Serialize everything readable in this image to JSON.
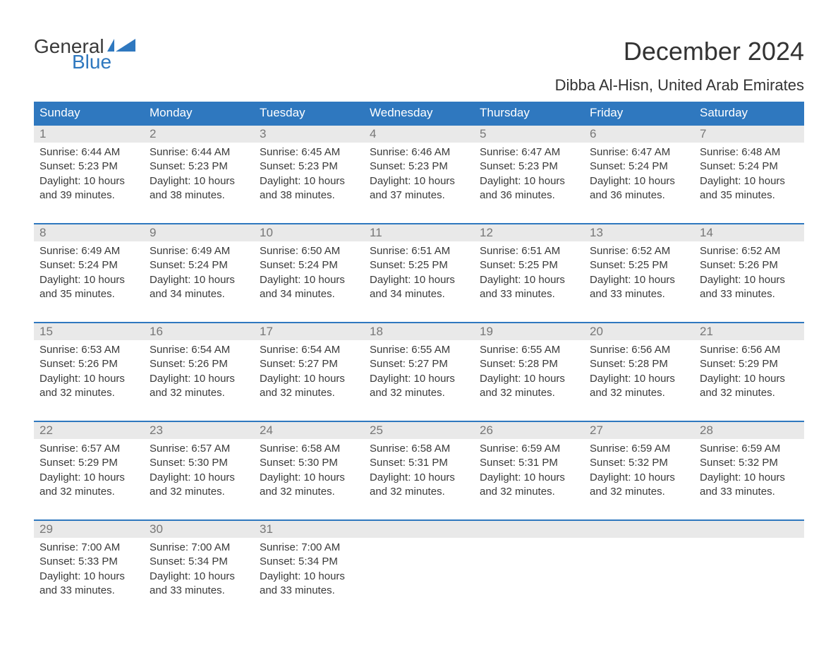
{
  "logo": {
    "text_general": "General",
    "text_blue": "Blue",
    "flag_color": "#2f78bf"
  },
  "title": "December 2024",
  "location": "Dibba Al-Hisn, United Arab Emirates",
  "colors": {
    "header_bg": "#2f78bf",
    "header_text": "#ffffff",
    "daynum_bg": "#e9e9e9",
    "daynum_border": "#2f78bf",
    "body_text": "#3a3a3a",
    "daynum_text": "#777777",
    "page_bg": "#ffffff"
  },
  "typography": {
    "title_fontsize": 36,
    "location_fontsize": 22,
    "header_fontsize": 17,
    "daynum_fontsize": 17,
    "body_fontsize": 15
  },
  "weekdays": [
    "Sunday",
    "Monday",
    "Tuesday",
    "Wednesday",
    "Thursday",
    "Friday",
    "Saturday"
  ],
  "start_offset": 0,
  "days": [
    {
      "n": 1,
      "sunrise": "6:44 AM",
      "sunset": "5:23 PM",
      "daylight": "10 hours and 39 minutes."
    },
    {
      "n": 2,
      "sunrise": "6:44 AM",
      "sunset": "5:23 PM",
      "daylight": "10 hours and 38 minutes."
    },
    {
      "n": 3,
      "sunrise": "6:45 AM",
      "sunset": "5:23 PM",
      "daylight": "10 hours and 38 minutes."
    },
    {
      "n": 4,
      "sunrise": "6:46 AM",
      "sunset": "5:23 PM",
      "daylight": "10 hours and 37 minutes."
    },
    {
      "n": 5,
      "sunrise": "6:47 AM",
      "sunset": "5:23 PM",
      "daylight": "10 hours and 36 minutes."
    },
    {
      "n": 6,
      "sunrise": "6:47 AM",
      "sunset": "5:24 PM",
      "daylight": "10 hours and 36 minutes."
    },
    {
      "n": 7,
      "sunrise": "6:48 AM",
      "sunset": "5:24 PM",
      "daylight": "10 hours and 35 minutes."
    },
    {
      "n": 8,
      "sunrise": "6:49 AM",
      "sunset": "5:24 PM",
      "daylight": "10 hours and 35 minutes."
    },
    {
      "n": 9,
      "sunrise": "6:49 AM",
      "sunset": "5:24 PM",
      "daylight": "10 hours and 34 minutes."
    },
    {
      "n": 10,
      "sunrise": "6:50 AM",
      "sunset": "5:24 PM",
      "daylight": "10 hours and 34 minutes."
    },
    {
      "n": 11,
      "sunrise": "6:51 AM",
      "sunset": "5:25 PM",
      "daylight": "10 hours and 34 minutes."
    },
    {
      "n": 12,
      "sunrise": "6:51 AM",
      "sunset": "5:25 PM",
      "daylight": "10 hours and 33 minutes."
    },
    {
      "n": 13,
      "sunrise": "6:52 AM",
      "sunset": "5:25 PM",
      "daylight": "10 hours and 33 minutes."
    },
    {
      "n": 14,
      "sunrise": "6:52 AM",
      "sunset": "5:26 PM",
      "daylight": "10 hours and 33 minutes."
    },
    {
      "n": 15,
      "sunrise": "6:53 AM",
      "sunset": "5:26 PM",
      "daylight": "10 hours and 32 minutes."
    },
    {
      "n": 16,
      "sunrise": "6:54 AM",
      "sunset": "5:26 PM",
      "daylight": "10 hours and 32 minutes."
    },
    {
      "n": 17,
      "sunrise": "6:54 AM",
      "sunset": "5:27 PM",
      "daylight": "10 hours and 32 minutes."
    },
    {
      "n": 18,
      "sunrise": "6:55 AM",
      "sunset": "5:27 PM",
      "daylight": "10 hours and 32 minutes."
    },
    {
      "n": 19,
      "sunrise": "6:55 AM",
      "sunset": "5:28 PM",
      "daylight": "10 hours and 32 minutes."
    },
    {
      "n": 20,
      "sunrise": "6:56 AM",
      "sunset": "5:28 PM",
      "daylight": "10 hours and 32 minutes."
    },
    {
      "n": 21,
      "sunrise": "6:56 AM",
      "sunset": "5:29 PM",
      "daylight": "10 hours and 32 minutes."
    },
    {
      "n": 22,
      "sunrise": "6:57 AM",
      "sunset": "5:29 PM",
      "daylight": "10 hours and 32 minutes."
    },
    {
      "n": 23,
      "sunrise": "6:57 AM",
      "sunset": "5:30 PM",
      "daylight": "10 hours and 32 minutes."
    },
    {
      "n": 24,
      "sunrise": "6:58 AM",
      "sunset": "5:30 PM",
      "daylight": "10 hours and 32 minutes."
    },
    {
      "n": 25,
      "sunrise": "6:58 AM",
      "sunset": "5:31 PM",
      "daylight": "10 hours and 32 minutes."
    },
    {
      "n": 26,
      "sunrise": "6:59 AM",
      "sunset": "5:31 PM",
      "daylight": "10 hours and 32 minutes."
    },
    {
      "n": 27,
      "sunrise": "6:59 AM",
      "sunset": "5:32 PM",
      "daylight": "10 hours and 32 minutes."
    },
    {
      "n": 28,
      "sunrise": "6:59 AM",
      "sunset": "5:32 PM",
      "daylight": "10 hours and 33 minutes."
    },
    {
      "n": 29,
      "sunrise": "7:00 AM",
      "sunset": "5:33 PM",
      "daylight": "10 hours and 33 minutes."
    },
    {
      "n": 30,
      "sunrise": "7:00 AM",
      "sunset": "5:34 PM",
      "daylight": "10 hours and 33 minutes."
    },
    {
      "n": 31,
      "sunrise": "7:00 AM",
      "sunset": "5:34 PM",
      "daylight": "10 hours and 33 minutes."
    }
  ],
  "labels": {
    "sunrise": "Sunrise: ",
    "sunset": "Sunset: ",
    "daylight": "Daylight: "
  }
}
